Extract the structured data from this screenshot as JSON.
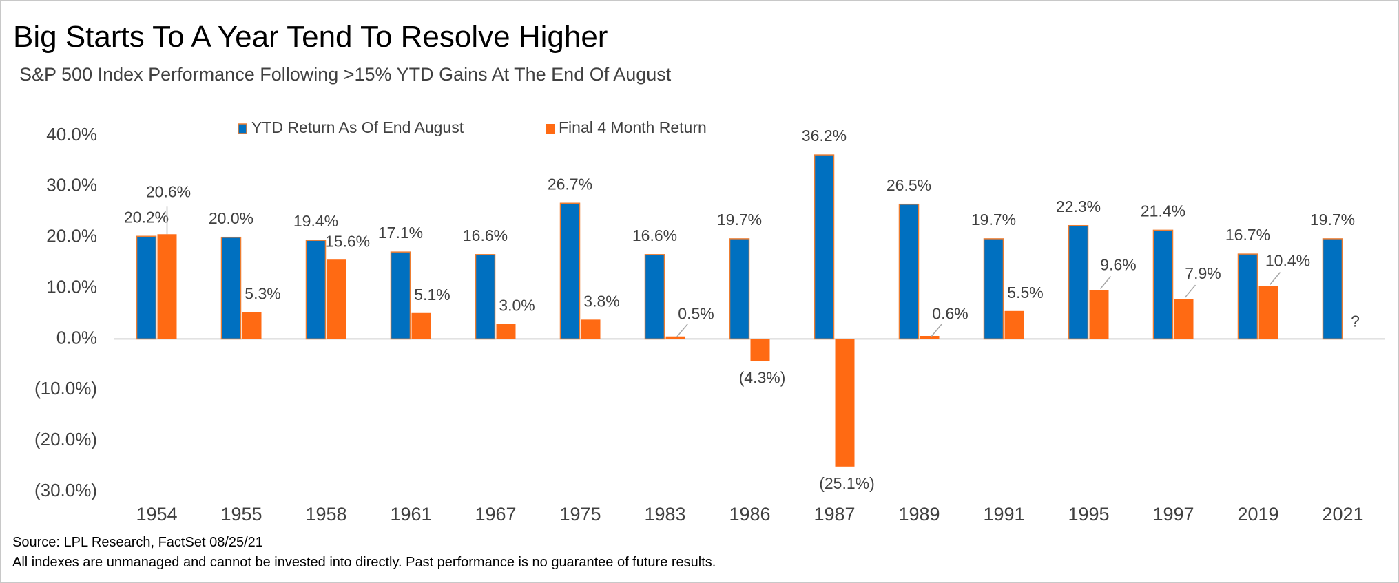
{
  "chart_data": {
    "type": "bar",
    "title": "Big Starts To A Year Tend To Resolve Higher",
    "subtitle": "S&P 500 Index Performance Following >15% YTD Gains At The End Of August",
    "categories": [
      "1954",
      "1955",
      "1958",
      "1961",
      "1967",
      "1975",
      "1983",
      "1986",
      "1987",
      "1989",
      "1991",
      "1995",
      "1997",
      "2019",
      "2021"
    ],
    "series": [
      {
        "name": "YTD Return As Of End August",
        "color": "#0070C0",
        "values": [
          20.2,
          20.0,
          19.4,
          17.1,
          16.6,
          26.7,
          16.6,
          19.7,
          36.2,
          26.5,
          19.7,
          22.3,
          21.4,
          16.7,
          19.7
        ],
        "labels": [
          "20.2%",
          "20.0%",
          "19.4%",
          "17.1%",
          "16.6%",
          "26.7%",
          "16.6%",
          "19.7%",
          "36.2%",
          "26.5%",
          "19.7%",
          "22.3%",
          "21.4%",
          "16.7%",
          "19.7%"
        ]
      },
      {
        "name": "Final 4 Month Return",
        "color": "#FF6A13",
        "values": [
          20.6,
          5.3,
          15.6,
          5.1,
          3.0,
          3.8,
          0.5,
          -4.3,
          -25.1,
          0.6,
          5.5,
          9.6,
          7.9,
          10.4,
          null
        ],
        "labels": [
          "20.6%",
          "5.3%",
          "15.6%",
          "5.1%",
          "3.0%",
          "3.8%",
          "0.5%",
          "(4.3%)",
          "(25.1%)",
          "0.6%",
          "5.5%",
          "9.6%",
          "7.9%",
          "10.4%",
          "?"
        ]
      }
    ],
    "bar_outline_color": "#ED7D31",
    "ylim": [
      -30,
      40
    ],
    "yticks": [
      40,
      30,
      20,
      10,
      0,
      -10,
      -20,
      -30
    ],
    "ytick_labels": [
      "40.0%",
      "30.0%",
      "20.0%",
      "10.0%",
      "0.0%",
      "(10.0%)",
      "(20.0%)",
      "(30.0%)"
    ],
    "legend_position": "top-center",
    "grid": false,
    "xlabel": "",
    "ylabel": ""
  },
  "footnotes": {
    "source": "Source: LPL Research, FactSet 08/25/21",
    "disclaimer": "All indexes are unmanaged and cannot be invested into directly. Past performance is no guarantee of future results."
  }
}
